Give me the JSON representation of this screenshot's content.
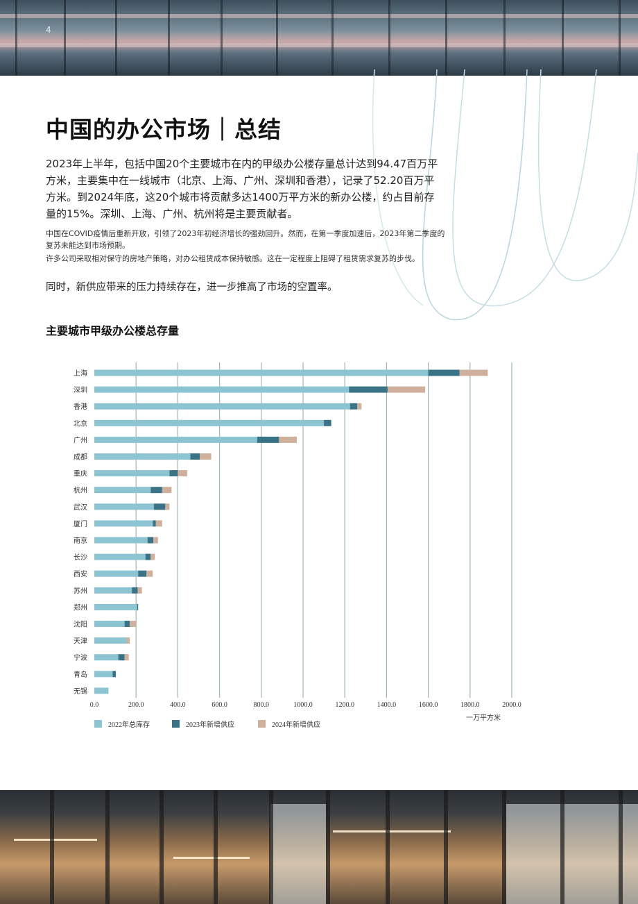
{
  "page": {
    "number": "4",
    "title": "中国的办公市场｜总结",
    "lead": "2023年上半年，包括中国20个主要城市在内的甲级办公楼存量总计达到94.47百万平方米，主要集中在一线城市（北京、上海、广州、深圳和香港），记录了52.20百万平方米。到2024年底，这20个城市将贡献多达1400万平方米的新办公楼，约占目前存量的15%。深圳、上海、广州、杭州将是主要贡献者。",
    "para1": "中国在COVID疫情后重新开放，引领了2023年初经济增长的强劲回升。然而，在第一季度加速后，2023年第二季度的复苏未能达到市场预期。",
    "para2": "许多公司采取相对保守的房地产策略，对办公租赁成本保持敏感。这在一定程度上阻碍了租赁需求复苏的步伐。",
    "closing": "同时，新供应带来的压力持续存在，进一步推高了市场的空置率。",
    "chart_title": "主要城市甲级办公楼总存量"
  },
  "colors": {
    "stock_2022": "#8cc4d1",
    "supply_2023": "#3a7286",
    "supply_2024": "#cfb09c",
    "gridline": "#9fb3b8"
  },
  "chart_data": {
    "type": "bar",
    "orientation": "horizontal",
    "stacked": true,
    "categories": [
      "上海",
      "深圳",
      "香港",
      "北京",
      "广州",
      "成都",
      "重庆",
      "杭州",
      "武汉",
      "厦门",
      "南京",
      "长沙",
      "西安",
      "苏州",
      "郑州",
      "沈阳",
      "天津",
      "宁波",
      "青岛",
      "无锡"
    ],
    "series": [
      {
        "name": "2022年总库存",
        "color": "#8cc4d1",
        "values": [
          1600,
          1220,
          1225,
          1100,
          780,
          460,
          360,
          270,
          285,
          280,
          255,
          245,
          210,
          180,
          205,
          145,
          155,
          115,
          88,
          68
        ]
      },
      {
        "name": "2023年新增供应",
        "color": "#3a7286",
        "values": [
          150,
          185,
          35,
          35,
          105,
          45,
          40,
          55,
          55,
          15,
          28,
          25,
          40,
          28,
          5,
          25,
          0,
          30,
          15,
          0
        ]
      },
      {
        "name": "2024年新增供应",
        "color": "#cfb09c",
        "values": [
          135,
          180,
          20,
          0,
          85,
          55,
          45,
          45,
          20,
          30,
          22,
          20,
          30,
          20,
          0,
          30,
          15,
          20,
          0,
          0
        ]
      }
    ],
    "x_ticks": [
      "0.0",
      "200.0",
      "400.0",
      "600.0",
      "800.0",
      "1000.0",
      "1200.0",
      "1400.0",
      "1600.0",
      "1800.0",
      "2000.0"
    ],
    "xlim": [
      0,
      2000
    ],
    "xlabel": "一万平方米",
    "grid": true,
    "legend_position": "bottom-left"
  }
}
